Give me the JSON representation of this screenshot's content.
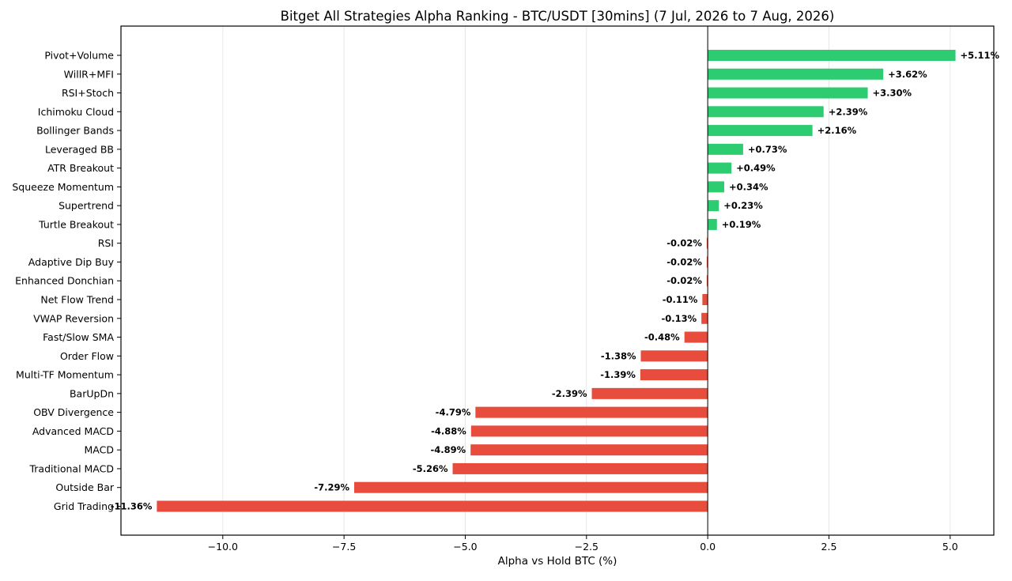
{
  "chart_data": {
    "type": "bar",
    "orientation": "horizontal",
    "title": "Bitget All Strategies Alpha Ranking - BTC/USDT [30mins] (7 Jul, 2026 to 7 Aug, 2026)",
    "xlabel": "Alpha vs Hold BTC (%)",
    "ylabel": "",
    "xlim": [
      -12.1,
      5.9
    ],
    "xticks": [
      -10,
      -7.5,
      -5,
      -2.5,
      0,
      2.5,
      5
    ],
    "xtick_labels": [
      "−10.0",
      "−7.5",
      "−5.0",
      "−2.5",
      "0.0",
      "2.5",
      "5.0"
    ],
    "grid": "vertical",
    "colors": {
      "positive": "#2ecc71",
      "negative": "#e74c3c"
    },
    "categories": [
      "Pivot+Volume",
      "WillR+MFI",
      "RSI+Stoch",
      "Ichimoku Cloud",
      "Bollinger Bands",
      "Leveraged BB",
      "ATR Breakout",
      "Squeeze Momentum",
      "Supertrend",
      "Turtle Breakout",
      "RSI",
      "Adaptive Dip Buy",
      "Enhanced Donchian",
      "Net Flow Trend",
      "VWAP Reversion",
      "Fast/Slow SMA",
      "Order Flow",
      "Multi-TF Momentum",
      "BarUpDn",
      "OBV Divergence",
      "Advanced MACD",
      "MACD",
      "Traditional MACD",
      "Outside Bar",
      "Grid Trading"
    ],
    "values": [
      5.11,
      3.62,
      3.3,
      2.39,
      2.16,
      0.73,
      0.49,
      0.34,
      0.23,
      0.19,
      -0.02,
      -0.02,
      -0.02,
      -0.11,
      -0.13,
      -0.48,
      -1.38,
      -1.39,
      -2.39,
      -4.79,
      -4.88,
      -4.89,
      -5.26,
      -7.29,
      -11.36
    ],
    "labels": [
      "+5.11%",
      "+3.62%",
      "+3.30%",
      "+2.39%",
      "+2.16%",
      "+0.73%",
      "+0.49%",
      "+0.34%",
      "+0.23%",
      "+0.19%",
      "-0.02%",
      "-0.02%",
      "-0.02%",
      "-0.11%",
      "-0.13%",
      "-0.48%",
      "-1.38%",
      "-1.39%",
      "-2.39%",
      "-4.79%",
      "-4.88%",
      "-4.89%",
      "-5.26%",
      "-7.29%",
      "-11.36%"
    ]
  }
}
